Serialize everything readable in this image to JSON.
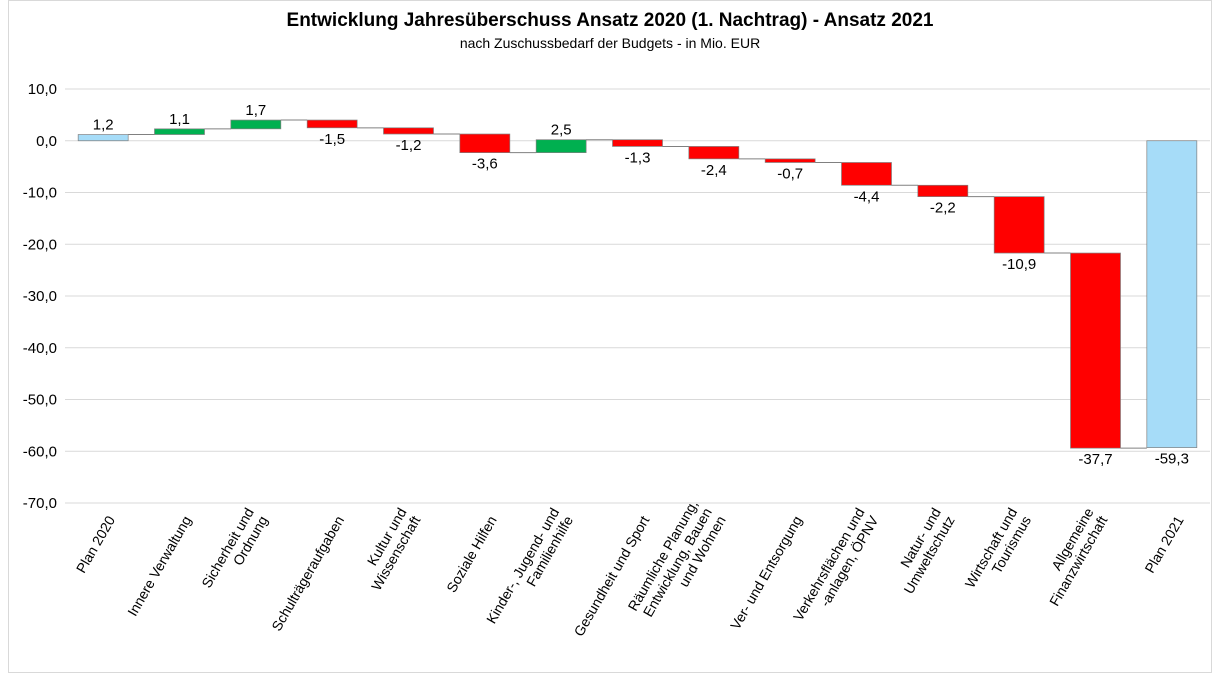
{
  "chart_data": {
    "type": "waterfall",
    "title": "Entwicklung Jahresüberschuss Ansatz 2020 (1. Nachtrag) - Ansatz 2021",
    "subtitle": "nach Zuschussbedarf der Budgets - in Mio. EUR",
    "categories": [
      [
        "Plan 2020"
      ],
      [
        "Innere Verwaltung"
      ],
      [
        "Sicherheit und",
        "Ordnung"
      ],
      [
        "Schulträgeraufgaben"
      ],
      [
        "Kultur und",
        "Wissenschaft"
      ],
      [
        "Soziale Hilfen"
      ],
      [
        "Kinder-, Jugend- und",
        "Familienhilfe"
      ],
      [
        "Gesundheit und Sport"
      ],
      [
        "Räumliche Planung,",
        "Entwicklung, Bauen",
        "und Wohnen"
      ],
      [
        "Ver- und Entsorgung"
      ],
      [
        "Verkehrsflächen und",
        "-anlagen, ÖPNV"
      ],
      [
        "Natur- und",
        "Umweltschutz"
      ],
      [
        "Wirtschaft und",
        "Tourismus"
      ],
      [
        "Allgemeine",
        "Finanzwirtschaft"
      ],
      [
        "Plan 2021"
      ]
    ],
    "measure": [
      "total",
      "relative",
      "relative",
      "relative",
      "relative",
      "relative",
      "relative",
      "relative",
      "relative",
      "relative",
      "relative",
      "relative",
      "relative",
      "relative",
      "total"
    ],
    "values": [
      1.2,
      1.1,
      1.7,
      -1.5,
      -1.2,
      -3.6,
      2.5,
      -1.3,
      -2.4,
      -0.7,
      -4.4,
      -2.2,
      -10.9,
      -37.7,
      -59.3
    ],
    "value_labels": [
      "1,2",
      "1,1",
      "1,7",
      "-1,5",
      "-1,2",
      "-3,6",
      "2,5",
      "-1,3",
      "-2,4",
      "-0,7",
      "-4,4",
      "-2,2",
      "-10,9",
      "-37,7",
      "-59,3"
    ],
    "colors": {
      "total": "#a6dcf8",
      "increase": "#00b050",
      "decrease": "#ff0000"
    },
    "ylim": [
      -70,
      10
    ],
    "yticks": [
      {
        "value": 10,
        "label": "10,0"
      },
      {
        "value": 0,
        "label": "0,0"
      },
      {
        "value": -10,
        "label": "-10,0"
      },
      {
        "value": -20,
        "label": "-20,0"
      },
      {
        "value": -30,
        "label": "-30,0"
      },
      {
        "value": -40,
        "label": "-40,0"
      },
      {
        "value": -50,
        "label": "-50,0"
      },
      {
        "value": -60,
        "label": "-60,0"
      },
      {
        "value": -70,
        "label": "-70,0"
      }
    ],
    "grid": true
  }
}
